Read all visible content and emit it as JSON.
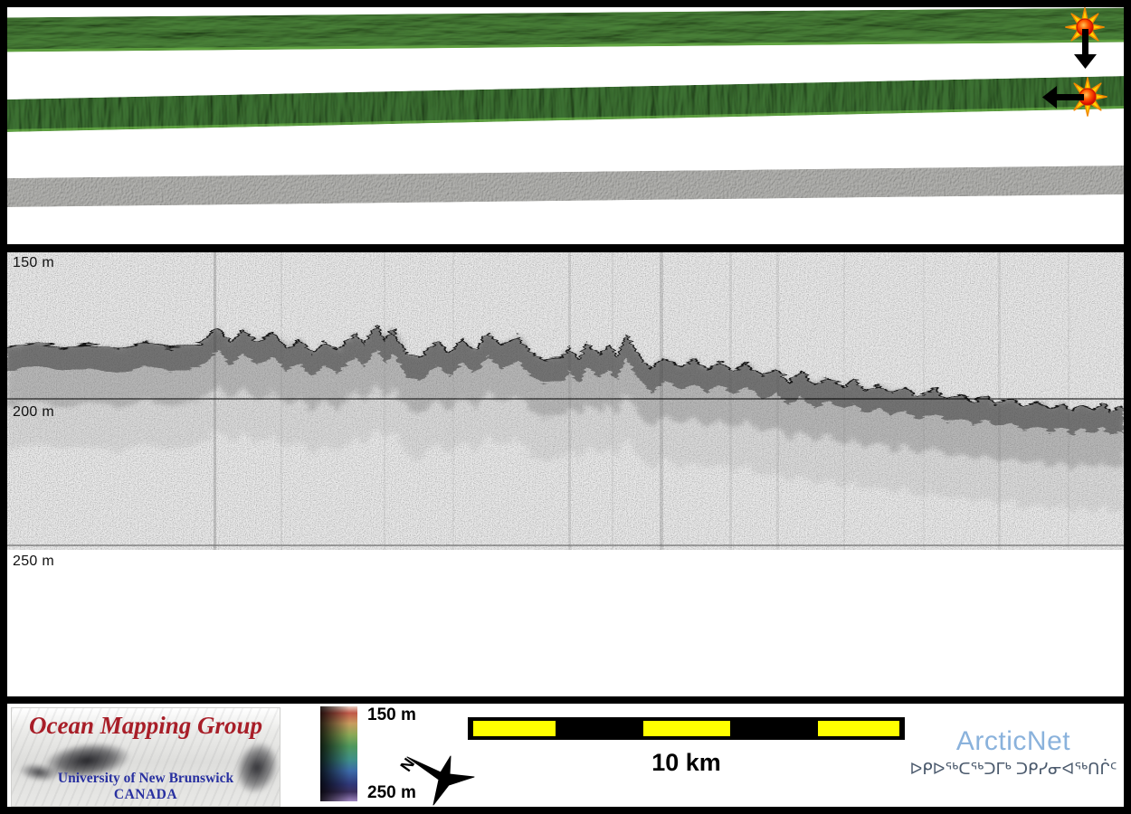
{
  "swath_panel": {
    "strips": [
      {
        "id": "bathymetry-swath-upper",
        "kind": "shaded-relief multibeam bathymetry",
        "palette": "green"
      },
      {
        "id": "bathymetry-swath-middle",
        "kind": "shaded-relief multibeam bathymetry",
        "palette": "green"
      },
      {
        "id": "backscatter-swath",
        "kind": "acoustic backscatter",
        "palette": "gray"
      }
    ],
    "markers": [
      {
        "id": "survey-position-marker-1",
        "icon": "sunburst-icon",
        "arrow_direction": "down"
      },
      {
        "id": "survey-position-marker-2",
        "icon": "sunburst-icon",
        "arrow_direction": "left"
      }
    ]
  },
  "echogram": {
    "depth_labels": {
      "d150": "150 m",
      "d200": "200 m",
      "d250": "250 m"
    }
  },
  "chart_data": {
    "type": "area",
    "y_tick_labels": [
      "150 m",
      "200 m",
      "250 m"
    ],
    "depth_gridlines_m": [
      200,
      250
    ],
    "x_range_km": [
      0,
      26
    ],
    "ylim_m": [
      150,
      250
    ],
    "series": [
      {
        "name": "seafloor-depth-profile",
        "points": [
          [
            0,
            182.7
          ],
          [
            0.7,
            180.6
          ],
          [
            1.3,
            182.7
          ],
          [
            1.9,
            181.2
          ],
          [
            2.6,
            183.6
          ],
          [
            3.2,
            180.6
          ],
          [
            3.8,
            182.7
          ],
          [
            4.5,
            181.2
          ],
          [
            4.9,
            175.6
          ],
          [
            5.2,
            180.6
          ],
          [
            5.5,
            176.5
          ],
          [
            5.8,
            180.6
          ],
          [
            6.2,
            177.5
          ],
          [
            6.5,
            182.7
          ],
          [
            6.8,
            179.6
          ],
          [
            7.1,
            184.3
          ],
          [
            7.4,
            180.6
          ],
          [
            7.7,
            183.6
          ],
          [
            8.1,
            177.5
          ],
          [
            8.3,
            181.2
          ],
          [
            8.6,
            175.0
          ],
          [
            8.8,
            179.6
          ],
          [
            9.0,
            176.5
          ],
          [
            9.3,
            184.3
          ],
          [
            9.6,
            185.8
          ],
          [
            10.0,
            180.6
          ],
          [
            10.3,
            184.3
          ],
          [
            10.6,
            179.6
          ],
          [
            10.9,
            183.6
          ],
          [
            11.2,
            177.5
          ],
          [
            11.5,
            181.8
          ],
          [
            11.9,
            178.7
          ],
          [
            12.2,
            184.3
          ],
          [
            12.5,
            186.7
          ],
          [
            12.9,
            185.8
          ],
          [
            13.1,
            182.7
          ],
          [
            13.3,
            186.7
          ],
          [
            13.5,
            181.2
          ],
          [
            13.8,
            184.9
          ],
          [
            14.0,
            181.8
          ],
          [
            14.2,
            185.8
          ],
          [
            14.4,
            178.1
          ],
          [
            14.6,
            182.7
          ],
          [
            14.8,
            186.7
          ],
          [
            15.0,
            189.8
          ],
          [
            15.3,
            185.8
          ],
          [
            15.7,
            188.9
          ],
          [
            16.0,
            186.7
          ],
          [
            16.3,
            189.8
          ],
          [
            16.6,
            187.3
          ],
          [
            16.9,
            190.4
          ],
          [
            17.2,
            188.0
          ],
          [
            17.6,
            192.0
          ],
          [
            17.9,
            189.8
          ],
          [
            18.2,
            194.1
          ],
          [
            18.5,
            191.0
          ],
          [
            18.8,
            195.1
          ],
          [
            19.1,
            192.9
          ],
          [
            19.5,
            196.0
          ],
          [
            19.7,
            193.5
          ],
          [
            20.0,
            197.2
          ],
          [
            20.3,
            195.1
          ],
          [
            20.6,
            198.1
          ],
          [
            20.9,
            196.0
          ],
          [
            21.2,
            199.1
          ],
          [
            21.6,
            196.6
          ],
          [
            21.9,
            200.0
          ],
          [
            22.2,
            198.5
          ],
          [
            22.5,
            200.9
          ],
          [
            22.8,
            199.1
          ],
          [
            23.0,
            201.5
          ],
          [
            23.4,
            200.0
          ],
          [
            23.7,
            202.8
          ],
          [
            24.0,
            201.2
          ],
          [
            24.3,
            203.4
          ],
          [
            24.6,
            201.8
          ],
          [
            24.8,
            204.3
          ],
          [
            25.0,
            202.2
          ],
          [
            25.3,
            203.7
          ],
          [
            25.5,
            201.5
          ],
          [
            25.7,
            204.3
          ],
          [
            25.9,
            202.5
          ],
          [
            26.0,
            203.7
          ]
        ]
      }
    ]
  },
  "footer": {
    "omg_logo": {
      "title": "Ocean Mapping Group",
      "institution": "University of New Brunswick",
      "country": "CANADA",
      "title_color": "#a81e28",
      "institution_color": "#2830a0"
    },
    "colorbar": {
      "top_label": "150 m",
      "bottom_label": "250 m"
    },
    "north_arrow": {
      "label": "N"
    },
    "scale_bar": {
      "label": "10 km",
      "segment_count": 5,
      "yellow": "#ffff00"
    },
    "arcticnet": {
      "name": "ArcticNet",
      "inuktitut": "ᐅᑭᐅᖅᑕᖅᑐᒥᒃ ᑐᑭᓯᓂᐊᖅᑎᒌᑦ",
      "brand_color": "#8ab2dc"
    }
  }
}
